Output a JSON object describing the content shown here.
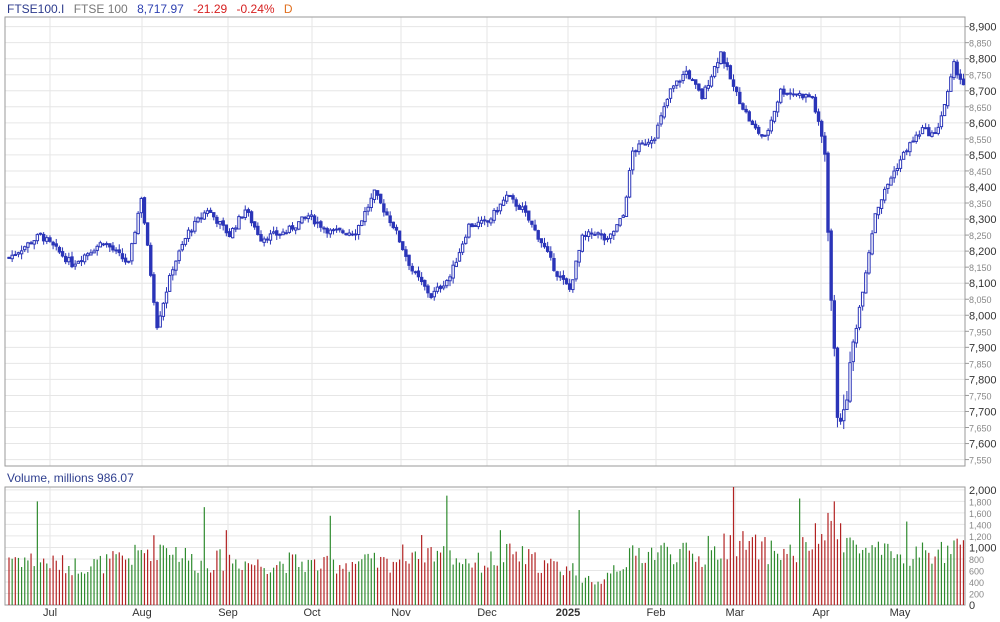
{
  "header": {
    "symbol": "FTSE100.I",
    "name": "FTSE 100",
    "last": "8,717.97",
    "change": "-21.29",
    "change_pct": "-0.24%",
    "interval": "D"
  },
  "volume_panel": {
    "label": "Volume, millions",
    "value": "986.07"
  },
  "colors": {
    "candle": "#2b35b8",
    "up_volume": "#2e8b2e",
    "down_volume": "#b22222",
    "grid": "#e6e6e6",
    "axis": "#999999"
  },
  "chart_data": {
    "type": "candlestick",
    "x_tick_labels": [
      "Jul",
      "Aug",
      "Sep",
      "Oct",
      "Nov",
      "Dec",
      "2025",
      "Feb",
      "Mar",
      "Apr",
      "May"
    ],
    "y_tick_labels": [
      "8,900",
      "8,850",
      "8,800",
      "8,750",
      "8,700",
      "8,650",
      "8,600",
      "8,550",
      "8,500",
      "8,450",
      "8,400",
      "8,350",
      "8,300",
      "8,250",
      "8,200",
      "8,150",
      "8,100",
      "8,050",
      "8,000",
      "7,950",
      "7,900",
      "7,850",
      "7,800",
      "7,750",
      "7,700",
      "7,650",
      "7,600",
      "7,550"
    ],
    "y_range": [
      7530,
      8930
    ],
    "volume_tick_labels": [
      "2,000",
      "1,800",
      "1,600",
      "1,400",
      "1,200",
      "1,000",
      "800",
      "600",
      "400",
      "200",
      "0"
    ],
    "volume_range": [
      0,
      2050
    ],
    "price_path_keypoints": [
      [
        0,
        8180
      ],
      [
        10,
        8250
      ],
      [
        20,
        8160
      ],
      [
        30,
        8230
      ],
      [
        38,
        8160
      ],
      [
        42,
        8370
      ],
      [
        47,
        7970
      ],
      [
        52,
        8150
      ],
      [
        57,
        8260
      ],
      [
        63,
        8330
      ],
      [
        70,
        8250
      ],
      [
        75,
        8330
      ],
      [
        80,
        8240
      ],
      [
        88,
        8260
      ],
      [
        95,
        8310
      ],
      [
        102,
        8260
      ],
      [
        110,
        8260
      ],
      [
        116,
        8380
      ],
      [
        122,
        8280
      ],
      [
        128,
        8140
      ],
      [
        134,
        8060
      ],
      [
        140,
        8120
      ],
      [
        146,
        8280
      ],
      [
        152,
        8290
      ],
      [
        158,
        8370
      ],
      [
        163,
        8330
      ],
      [
        169,
        8230
      ],
      [
        174,
        8130
      ],
      [
        178,
        8080
      ],
      [
        182,
        8240
      ],
      [
        186,
        8260
      ],
      [
        190,
        8230
      ],
      [
        195,
        8310
      ],
      [
        198,
        8510
      ],
      [
        205,
        8560
      ],
      [
        210,
        8700
      ],
      [
        215,
        8760
      ],
      [
        220,
        8680
      ],
      [
        226,
        8820
      ],
      [
        230,
        8710
      ],
      [
        236,
        8590
      ],
      [
        240,
        8550
      ],
      [
        245,
        8700
      ],
      [
        250,
        8690
      ],
      [
        255,
        8680
      ],
      [
        259,
        8510
      ],
      [
        261,
        8050
      ],
      [
        263,
        7700
      ],
      [
        265,
        7680
      ],
      [
        268,
        7910
      ],
      [
        272,
        8140
      ],
      [
        275,
        8320
      ],
      [
        280,
        8430
      ],
      [
        285,
        8520
      ],
      [
        290,
        8580
      ],
      [
        294,
        8560
      ],
      [
        298,
        8690
      ],
      [
        300,
        8780
      ],
      [
        303,
        8720
      ]
    ],
    "volume_path_keypoints": [
      [
        0,
        850
      ],
      [
        10,
        760
      ],
      [
        20,
        680
      ],
      [
        30,
        720
      ],
      [
        40,
        850
      ],
      [
        45,
        1000
      ],
      [
        50,
        1050
      ],
      [
        60,
        720
      ],
      [
        70,
        800
      ],
      [
        80,
        700
      ],
      [
        90,
        750
      ],
      [
        100,
        680
      ],
      [
        110,
        750
      ],
      [
        120,
        720
      ],
      [
        130,
        1000
      ],
      [
        140,
        850
      ],
      [
        150,
        720
      ],
      [
        160,
        900
      ],
      [
        170,
        700
      ],
      [
        180,
        620
      ],
      [
        186,
        300
      ],
      [
        190,
        600
      ],
      [
        200,
        900
      ],
      [
        210,
        950
      ],
      [
        220,
        800
      ],
      [
        230,
        1100
      ],
      [
        240,
        950
      ],
      [
        250,
        900
      ],
      [
        260,
        1300
      ],
      [
        265,
        1200
      ],
      [
        270,
        950
      ],
      [
        280,
        850
      ],
      [
        290,
        900
      ],
      [
        303,
        950
      ]
    ],
    "volume_spikes": {
      "9": 1800,
      "62": 1700,
      "69": 1300,
      "102": 1550,
      "139": 1900,
      "156": 1300,
      "181": 1650,
      "222": 1200,
      "230": 2050,
      "251": 1850,
      "262": 1800,
      "264": 1420,
      "285": 1450
    }
  }
}
